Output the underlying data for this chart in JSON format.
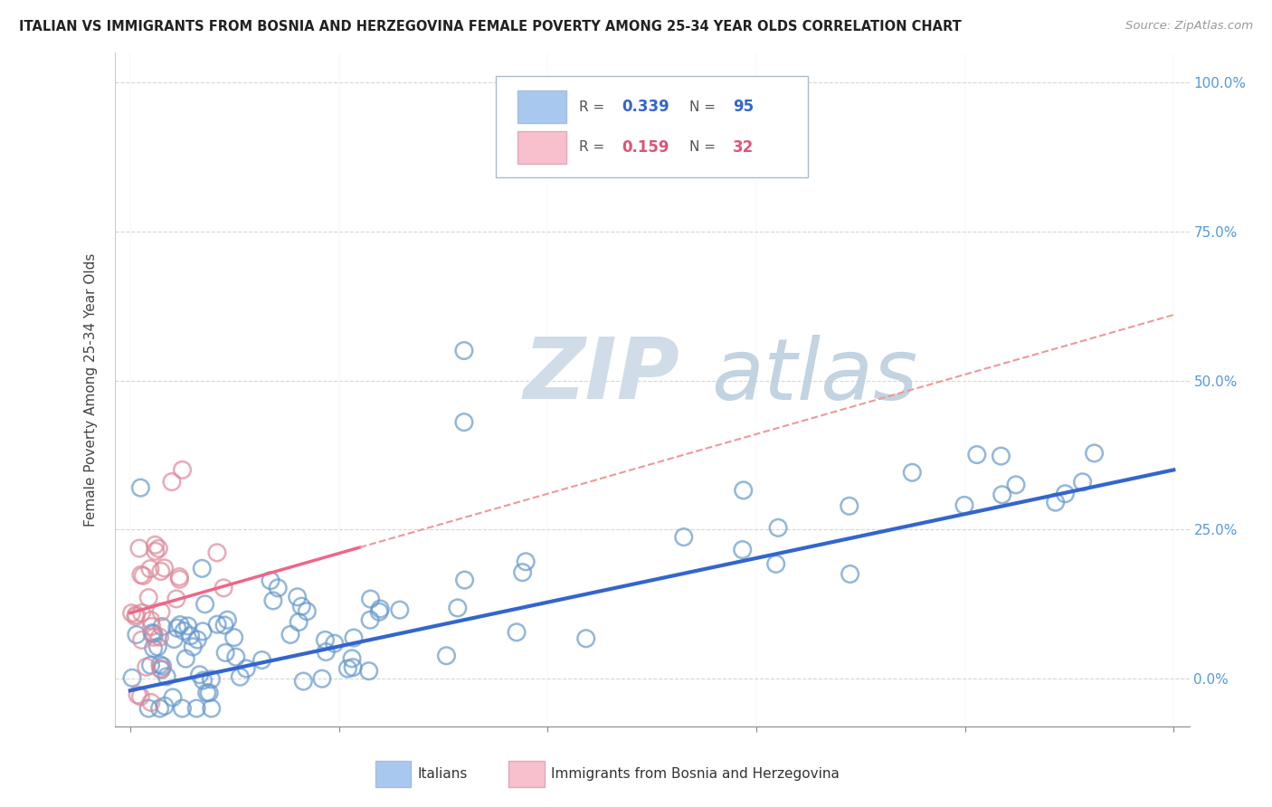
{
  "title": "ITALIAN VS IMMIGRANTS FROM BOSNIA AND HERZEGOVINA FEMALE POVERTY AMONG 25-34 YEAR OLDS CORRELATION CHART",
  "source": "Source: ZipAtlas.com",
  "ylabel": "Female Poverty Among 25-34 Year Olds",
  "legend_italians": "Italians",
  "legend_bosnia": "Immigrants from Bosnia and Herzegovina",
  "watermark_zip": "ZIP",
  "watermark_atlas": "atlas",
  "blue_color": "#a8c8f0",
  "blue_edge": "#6699cc",
  "pink_color": "#f8c0cc",
  "pink_edge": "#dd8899",
  "reg_blue_color": "#3366cc",
  "reg_pink_color": "#ee6688",
  "reg_pink_dash_color": "#ee9999",
  "bg_color": "#ffffff",
  "grid_color": "#cccccc",
  "right_tick_color": "#5599dd",
  "title_color": "#222222",
  "source_color": "#999999",
  "R_blue": "0.339",
  "N_blue": "95",
  "R_pink": "0.159",
  "N_pink": "32",
  "xlim": [
    0.0,
    1.0
  ],
  "ylim": [
    -0.08,
    1.05
  ]
}
